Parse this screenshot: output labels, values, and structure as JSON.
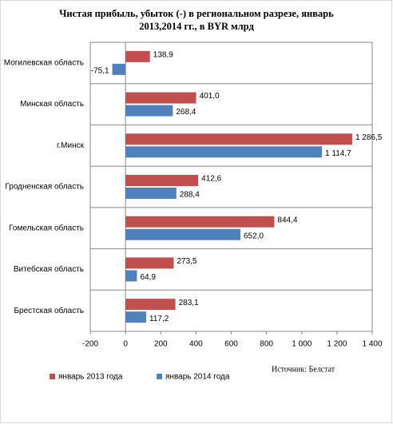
{
  "chart_data": {
    "type": "hbar",
    "title": [
      "Чистая прибыль, убыток (-) в региональном разрезе, январь",
      "2013,2014 гг., в BYR млрд"
    ],
    "categories": [
      "Могилевская область",
      "Минская область",
      "г.Минск",
      "Гродненская область",
      "Гомельская область",
      "Витебская область",
      "Брестская область"
    ],
    "series": [
      {
        "name": "январь 2013 года",
        "color": "#c0504d",
        "values": [
          138.9,
          401.0,
          1286.5,
          412.6,
          844.4,
          273.5,
          283.1
        ],
        "value_labels": [
          "138,9",
          "401,0",
          "1 286,5",
          "412,6",
          "844,4",
          "273,5",
          "283,1"
        ]
      },
      {
        "name": "январь 2014 года",
        "color": "#4f81bd",
        "values": [
          -75.1,
          268.4,
          1114.7,
          288.4,
          652.0,
          64.9,
          117.2
        ],
        "value_labels": [
          "-75,1",
          "268,4",
          "1 114,7",
          "288,4",
          "652,0",
          "64,9",
          "117,2"
        ]
      }
    ],
    "xlim": [
      -200,
      1400
    ],
    "xticks": [
      -200,
      0,
      200,
      400,
      600,
      800,
      {
        "value": 1000,
        "label": "1 000"
      },
      {
        "value": 1200,
        "label": "1 200"
      },
      {
        "value": 1400,
        "label": "1 400"
      }
    ],
    "source": "Источник: Белстат",
    "legend": "bottom"
  }
}
